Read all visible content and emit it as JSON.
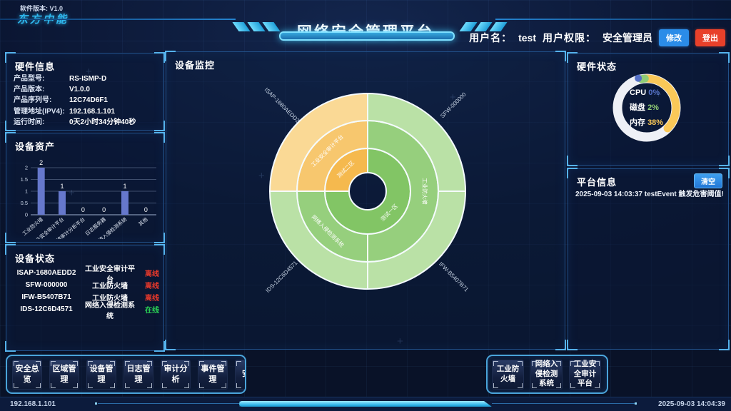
{
  "header": {
    "software_version": "软件版本: V1.0",
    "logo": "东方中能",
    "title": "网络安全管理平台",
    "username_label": "用户名：",
    "username": "test",
    "permission_label": "用户权限：",
    "permission": "安全管理员",
    "modify_button": "修改",
    "logout_button": "登出"
  },
  "panels": {
    "hardware_info": {
      "title": "硬件信息",
      "rows": [
        {
          "label": "产品型号:",
          "value": "RS-ISMP-D"
        },
        {
          "label": "产品版本:",
          "value": "V1.0.0"
        },
        {
          "label": "产品序列号:",
          "value": "12C74D6F1"
        },
        {
          "label": "管理地址(IPV4):",
          "value": "192.168.1.101"
        },
        {
          "label": "运行时间:",
          "value": "0天2小时34分钟40秒"
        }
      ]
    },
    "device_assets": {
      "title": "设备资产"
    },
    "device_status": {
      "title": "设备状态",
      "rows": [
        {
          "id": "ISAP-1680AEDD2",
          "type": "工业安全审计平台",
          "status": "离线",
          "online": false
        },
        {
          "id": "SFW-000000",
          "type": "工业防火墙",
          "status": "离线",
          "online": false
        },
        {
          "id": "IFW-B5407B71",
          "type": "工业防火墙",
          "status": "离线",
          "online": false
        },
        {
          "id": "IDS-12C6D4571",
          "type": "网络入侵检测系统",
          "status": "在线",
          "online": true
        }
      ]
    },
    "device_monitor": {
      "title": "设备监控"
    },
    "hardware_status": {
      "title": "硬件状态"
    },
    "platform_info": {
      "title": "平台信息",
      "clear_button": "清空",
      "messages": [
        "2025-09-03 14:03:37 testEvent 触发危害阈值!"
      ]
    }
  },
  "chart_data": [
    {
      "id": "device_assets_bar",
      "type": "bar",
      "title": "设备资产",
      "categories": [
        "工业防火墙",
        "工业安全审计平台",
        "工业网络审计分析平台",
        "日志服务器",
        "网络入侵检测系统",
        "其他"
      ],
      "values": [
        2,
        1,
        0,
        0,
        1,
        0
      ],
      "ylim": [
        0,
        2
      ],
      "yticks": [
        0,
        0.5,
        1,
        1.5,
        2
      ],
      "bar_color": "#6678cc",
      "grid": true
    },
    {
      "id": "device_monitor_sunburst",
      "type": "sunburst",
      "title": "设备监控",
      "tree": [
        {
          "name": "测试一区",
          "color": "#82c565",
          "children": [
            {
              "name": "工业防火墙",
              "color": "#96cf7d",
              "children": [
                {
                  "name": "SFW-000000",
                  "color": "#bae1a6"
                },
                {
                  "name": "IFW-B5407B71",
                  "color": "#bae1a6"
                }
              ]
            },
            {
              "name": "网络入侵检测系统",
              "color": "#96cf7d",
              "children": [
                {
                  "name": "IDS-12C6D4571",
                  "color": "#bae1a6"
                }
              ]
            }
          ]
        },
        {
          "name": "测试二区",
          "color": "#f5b94e",
          "children": [
            {
              "name": "工业安全审计平台",
              "color": "#f7c76e",
              "children": [
                {
                  "name": "ISAP-1680AEDD2",
                  "color": "#fad995"
                }
              ]
            }
          ]
        }
      ]
    },
    {
      "id": "hardware_status_gauge",
      "type": "gauge",
      "track_color": "#eef0f6",
      "metrics": [
        {
          "label": "CPU",
          "value": 0,
          "unit": "%",
          "color": "#5470c6"
        },
        {
          "label": "磁盘",
          "value": 2,
          "unit": "%",
          "color": "#91cc75"
        },
        {
          "label": "内存",
          "value": 38,
          "unit": "%",
          "color": "#fac858"
        }
      ]
    }
  ],
  "toolbar": {
    "left_buttons": [
      "安全总览",
      "区域管理",
      "设备管理",
      "日志管理",
      "审计分析",
      "事件管理",
      "安全"
    ],
    "right_buttons": [
      "工业防火墙",
      "网络入侵检测系统",
      "工业安全审计平台"
    ]
  },
  "statusbar": {
    "ip": "192.168.1.101",
    "time": "2025-09-03 14:04:39"
  }
}
